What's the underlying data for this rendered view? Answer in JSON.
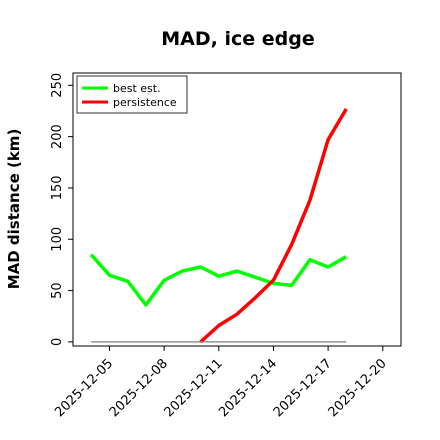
{
  "chart_data": {
    "type": "line",
    "title": "MAD, ice edge",
    "xlabel": "",
    "ylabel": "MAD distance (km)",
    "xlim": [
      "2025-12-03",
      "2025-12-21"
    ],
    "ylim": [
      -4,
      262
    ],
    "x_ticks": [
      "2025-12-05",
      "2025-12-08",
      "2025-12-11",
      "2025-12-14",
      "2025-12-17",
      "2025-12-20"
    ],
    "y_ticks": [
      0,
      50,
      100,
      150,
      200,
      250
    ],
    "legend": {
      "position": "top-left",
      "entries": [
        "best est.",
        "persistence"
      ]
    },
    "series": [
      {
        "name": "best est.",
        "color": "#00ff00",
        "x": [
          "2025-12-04",
          "2025-12-05",
          "2025-12-06",
          "2025-12-07",
          "2025-12-08",
          "2025-12-09",
          "2025-12-10",
          "2025-12-11",
          "2025-12-12",
          "2025-12-13",
          "2025-12-14",
          "2025-12-15",
          "2025-12-16",
          "2025-12-17",
          "2025-12-18"
        ],
        "values": [
          85,
          65,
          59,
          36,
          60,
          69,
          73,
          64,
          69,
          63,
          57,
          55,
          80,
          73,
          83
        ]
      },
      {
        "name": "persistence",
        "color": "#ff0000",
        "x": [
          "2025-12-10",
          "2025-12-11",
          "2025-12-12",
          "2025-12-13",
          "2025-12-14",
          "2025-12-15",
          "2025-12-16",
          "2025-12-17",
          "2025-12-18"
        ],
        "values": [
          0,
          16,
          27,
          43,
          60,
          95,
          138,
          197,
          227
        ]
      },
      {
        "name": "",
        "color": "#808080",
        "x": [
          "2025-12-04",
          "2025-12-18"
        ],
        "values": [
          0,
          0
        ]
      }
    ]
  }
}
